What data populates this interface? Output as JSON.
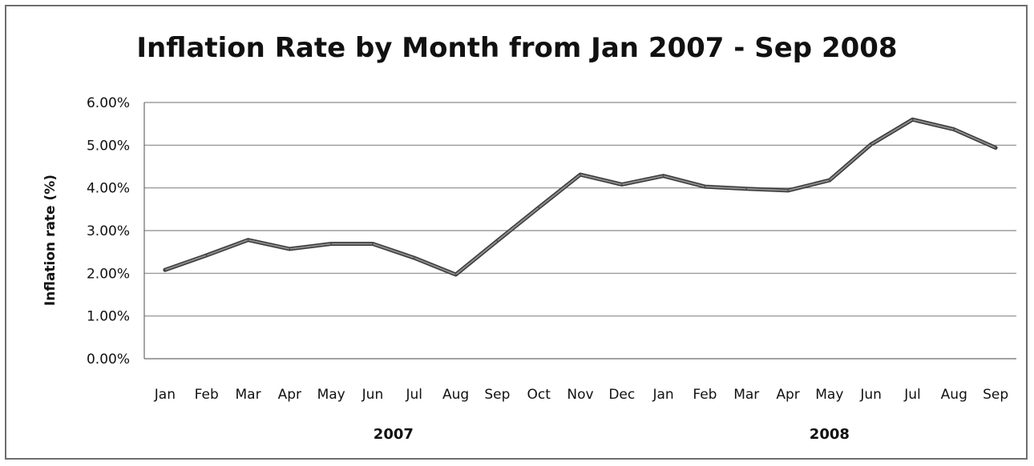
{
  "chart_data": {
    "type": "line",
    "title": "Inflation Rate by Month from Jan 2007 - Sep 2008",
    "xlabel": "",
    "ylabel": "Inflation rate (%)",
    "ylim": [
      0,
      6
    ],
    "y_ticks": [
      "0.00%",
      "1.00%",
      "2.00%",
      "3.00%",
      "4.00%",
      "5.00%",
      "6.00%"
    ],
    "grid": true,
    "legend": "none",
    "categories": [
      "Jan",
      "Feb",
      "Mar",
      "Apr",
      "May",
      "Jun",
      "Jul",
      "Aug",
      "Sep",
      "Oct",
      "Nov",
      "Dec",
      "Jan",
      "Feb",
      "Mar",
      "Apr",
      "May",
      "Jun",
      "Jul",
      "Aug",
      "Sep"
    ],
    "category_groups": [
      {
        "label": "2007",
        "start": 0,
        "end": 11
      },
      {
        "label": "2008",
        "start": 12,
        "end": 20
      }
    ],
    "series": [
      {
        "values": [
          2.08,
          2.42,
          2.78,
          2.57,
          2.69,
          2.69,
          2.36,
          1.97,
          2.76,
          3.54,
          4.31,
          4.08,
          4.28,
          4.03,
          3.98,
          3.94,
          4.18,
          5.02,
          5.6,
          5.37,
          4.94
        ],
        "color": "#8c8c8c"
      }
    ]
  }
}
